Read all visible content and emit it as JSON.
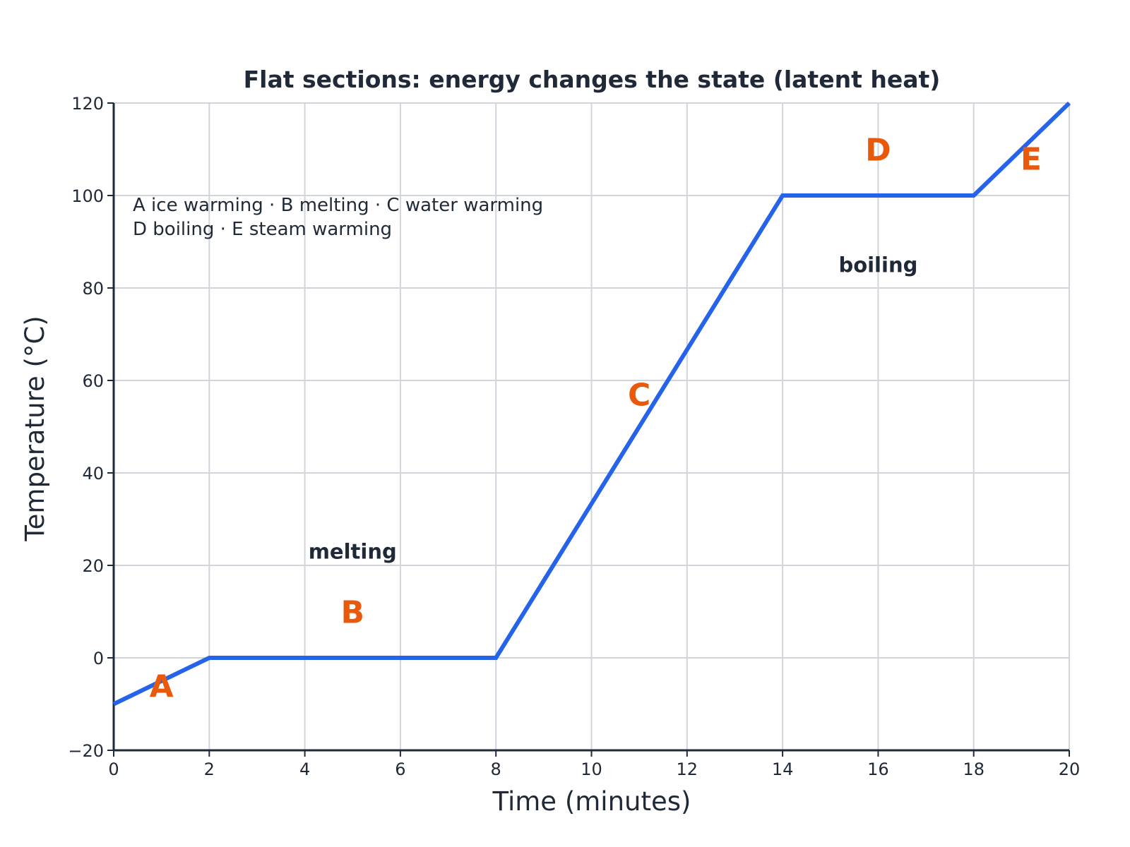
{
  "colors": {
    "line": "#2563eb",
    "letters": "#e8590c",
    "grid": "#d1d5db",
    "axis": "#1f2937",
    "text": "#1f2937"
  },
  "chart_data": {
    "type": "line",
    "title": "Flat sections: energy changes the state (latent heat)",
    "xlabel": "Time (minutes)",
    "ylabel": "Temperature (°C)",
    "xlim": [
      0,
      20
    ],
    "ylim": [
      -20,
      120
    ],
    "xticks": [
      0,
      2,
      4,
      6,
      8,
      10,
      12,
      14,
      16,
      18,
      20
    ],
    "yticks": [
      -20,
      0,
      20,
      40,
      60,
      80,
      100,
      120
    ],
    "ytick_labels": [
      "−20",
      "0",
      "20",
      "40",
      "60",
      "80",
      "100",
      "120"
    ],
    "grid": true,
    "series": [
      {
        "x": [
          0,
          2,
          8,
          14,
          18,
          20
        ],
        "y": [
          -10,
          0,
          0,
          100,
          100,
          120
        ]
      }
    ],
    "legend_lines": [
      "A ice warming  ·  B melting  ·  C water warming",
      "D boiling  ·  E steam warming"
    ],
    "segment_labels": [
      {
        "text": "A",
        "x": 1,
        "y": -6
      },
      {
        "text": "B",
        "x": 5,
        "y": 10
      },
      {
        "text": "C",
        "x": 11,
        "y": 57
      },
      {
        "text": "D",
        "x": 16,
        "y": 110
      },
      {
        "text": "E",
        "x": 19.2,
        "y": 108
      }
    ],
    "phase_labels": [
      {
        "text": "melting",
        "x": 5,
        "y": 23
      },
      {
        "text": "boiling",
        "x": 16,
        "y": 85
      }
    ]
  }
}
